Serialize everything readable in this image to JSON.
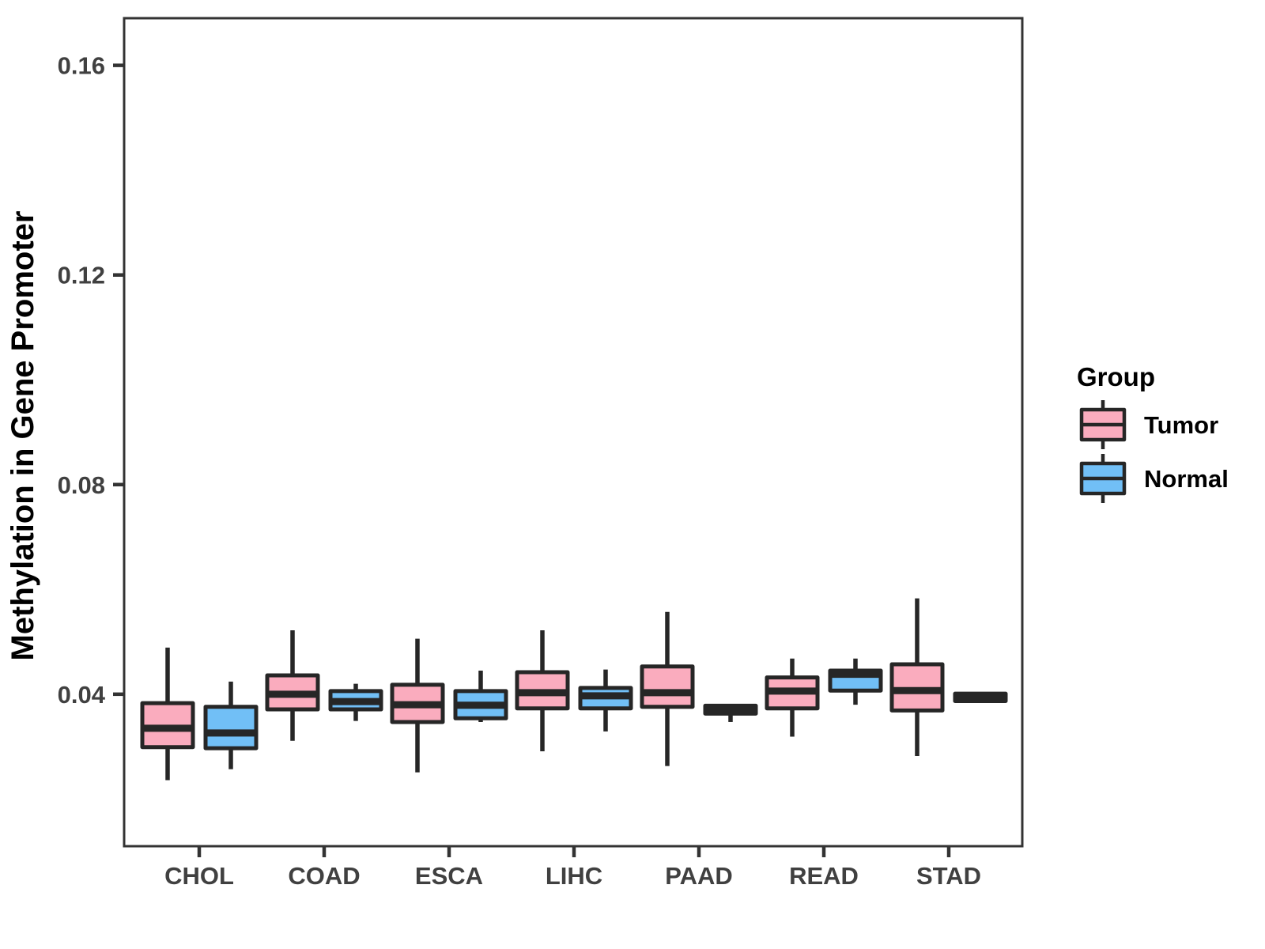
{
  "chart_data": {
    "type": "boxplot",
    "title": "",
    "xlabel": "",
    "ylabel": "Methylation in Gene Promoter",
    "categories": [
      "CHOL",
      "COAD",
      "ESCA",
      "LIHC",
      "PAAD",
      "READ",
      "STAD"
    ],
    "yticks": [
      0.04,
      0.08,
      0.12,
      0.16
    ],
    "ytick_labels": [
      "0.04",
      "0.08",
      "0.12",
      "0.16"
    ],
    "ylim": [
      0.011,
      0.169
    ],
    "grid": false,
    "legend": {
      "title": "Group",
      "position": "right",
      "entries": [
        "Tumor",
        "Normal"
      ]
    },
    "colors": {
      "tumor_fill": "#FAACBE",
      "normal_fill": "#71BFF6",
      "box_stroke": "#262626",
      "panel_border": "#333333",
      "tick": "#333333",
      "tick_label": "#404040",
      "text": "#000000",
      "background": "#FFFFFF"
    },
    "series": [
      {
        "name": "Tumor",
        "color": "#FAACBE",
        "boxes": [
          {
            "category": "CHOL",
            "whisker_low": 0.0236,
            "q1": 0.0299,
            "median": 0.0335,
            "q3": 0.0383,
            "whisker_high": 0.0489
          },
          {
            "category": "COAD",
            "whisker_low": 0.0311,
            "q1": 0.0371,
            "median": 0.04,
            "q3": 0.0436,
            "whisker_high": 0.0522
          },
          {
            "category": "ESCA",
            "whisker_low": 0.0251,
            "q1": 0.0347,
            "median": 0.038,
            "q3": 0.0418,
            "whisker_high": 0.0506
          },
          {
            "category": "LIHC",
            "whisker_low": 0.0291,
            "q1": 0.0373,
            "median": 0.0403,
            "q3": 0.0442,
            "whisker_high": 0.0522
          },
          {
            "category": "PAAD",
            "whisker_low": 0.0263,
            "q1": 0.0376,
            "median": 0.0403,
            "q3": 0.0453,
            "whisker_high": 0.0557
          },
          {
            "category": "READ",
            "whisker_low": 0.0319,
            "q1": 0.0373,
            "median": 0.0406,
            "q3": 0.0432,
            "whisker_high": 0.0468
          },
          {
            "category": "STAD",
            "whisker_low": 0.0282,
            "q1": 0.0369,
            "median": 0.0407,
            "q3": 0.0457,
            "whisker_high": 0.0583
          }
        ]
      },
      {
        "name": "Normal",
        "color": "#71BFF6",
        "boxes": [
          {
            "category": "CHOL",
            "whisker_low": 0.0257,
            "q1": 0.0297,
            "median": 0.0326,
            "q3": 0.0376,
            "whisker_high": 0.0424
          },
          {
            "category": "COAD",
            "whisker_low": 0.0349,
            "q1": 0.0371,
            "median": 0.0386,
            "q3": 0.0406,
            "whisker_high": 0.042
          },
          {
            "category": "ESCA",
            "whisker_low": 0.0347,
            "q1": 0.0354,
            "median": 0.0379,
            "q3": 0.0406,
            "whisker_high": 0.0445
          },
          {
            "category": "LIHC",
            "whisker_low": 0.0329,
            "q1": 0.0373,
            "median": 0.0397,
            "q3": 0.0412,
            "whisker_high": 0.0447
          },
          {
            "category": "PAAD",
            "whisker_low": 0.0347,
            "q1": 0.0363,
            "median": 0.037,
            "q3": 0.0378,
            "whisker_high": 0.038
          },
          {
            "category": "READ",
            "whisker_low": 0.038,
            "q1": 0.0407,
            "median": 0.0438,
            "q3": 0.0445,
            "whisker_high": 0.0468
          },
          {
            "category": "STAD",
            "whisker_low": 0.0384,
            "q1": 0.0387,
            "median": 0.0394,
            "q3": 0.0401,
            "whisker_high": 0.0404
          }
        ]
      }
    ]
  }
}
